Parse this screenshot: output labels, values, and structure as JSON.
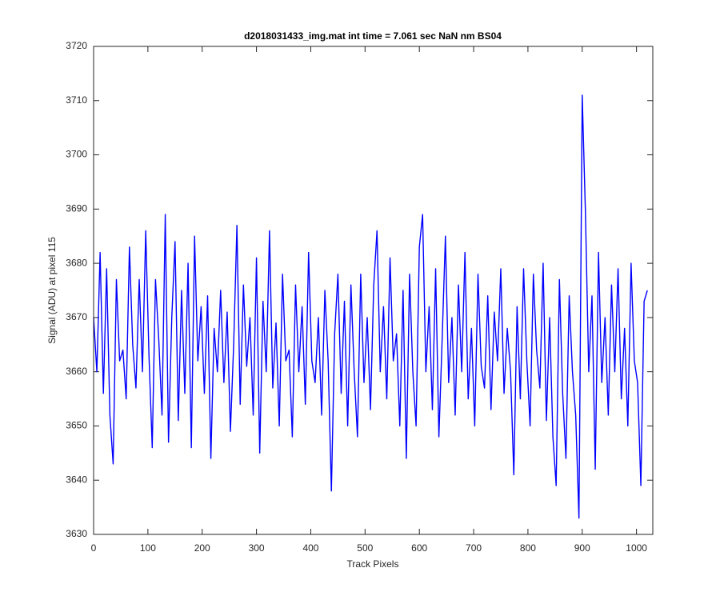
{
  "chart_data": {
    "type": "line",
    "title": "d2018031433_img.mat int time = 7.061 sec  NaN nm BS04",
    "x_label": "Track Pixels",
    "y_label": "Signal (ADU) at pixel 115",
    "xlim": [
      0,
      1030
    ],
    "ylim": [
      3630,
      3720
    ],
    "xticks": [
      0,
      100,
      200,
      300,
      400,
      500,
      600,
      700,
      800,
      900,
      1000
    ],
    "yticks": [
      3630,
      3640,
      3650,
      3660,
      3670,
      3680,
      3690,
      3700,
      3710,
      3720
    ],
    "grid": false,
    "x": [
      0,
      6,
      12,
      18,
      24,
      30,
      36,
      42,
      48,
      54,
      60,
      66,
      72,
      78,
      84,
      90,
      96,
      102,
      108,
      114,
      120,
      126,
      132,
      138,
      144,
      150,
      156,
      162,
      168,
      174,
      180,
      186,
      192,
      198,
      204,
      210,
      216,
      222,
      228,
      234,
      240,
      246,
      252,
      258,
      264,
      270,
      276,
      282,
      288,
      294,
      300,
      306,
      312,
      318,
      324,
      330,
      336,
      342,
      348,
      354,
      360,
      366,
      372,
      378,
      384,
      390,
      396,
      402,
      408,
      414,
      420,
      426,
      432,
      438,
      444,
      450,
      456,
      462,
      468,
      474,
      480,
      486,
      492,
      498,
      504,
      510,
      516,
      522,
      528,
      534,
      540,
      546,
      552,
      558,
      564,
      570,
      576,
      582,
      588,
      594,
      600,
      606,
      612,
      618,
      624,
      630,
      636,
      642,
      648,
      654,
      660,
      666,
      672,
      678,
      684,
      690,
      696,
      702,
      708,
      714,
      720,
      726,
      732,
      738,
      744,
      750,
      756,
      762,
      768,
      774,
      780,
      786,
      792,
      798,
      804,
      810,
      816,
      822,
      828,
      834,
      840,
      846,
      852,
      858,
      864,
      870,
      876,
      882,
      888,
      894,
      900,
      906,
      912,
      918,
      924,
      930,
      936,
      942,
      948,
      954,
      960,
      966,
      972,
      978,
      984,
      990,
      996,
      1002,
      1008,
      1014,
      1020
    ],
    "series": [
      {
        "name": "signal",
        "color": "#0000ff",
        "values": [
          3670,
          3660,
          3682,
          3656,
          3679,
          3652,
          3643,
          3677,
          3662,
          3664,
          3655,
          3683,
          3665,
          3657,
          3677,
          3660,
          3686,
          3663,
          3646,
          3677,
          3666,
          3652,
          3689,
          3647,
          3670,
          3684,
          3651,
          3675,
          3656,
          3680,
          3646,
          3685,
          3662,
          3672,
          3656,
          3674,
          3644,
          3668,
          3660,
          3675,
          3658,
          3671,
          3649,
          3665,
          3687,
          3654,
          3676,
          3661,
          3670,
          3652,
          3681,
          3645,
          3673,
          3660,
          3686,
          3657,
          3669,
          3650,
          3678,
          3662,
          3664,
          3648,
          3676,
          3660,
          3672,
          3654,
          3682,
          3662,
          3658,
          3670,
          3652,
          3675,
          3662,
          3638,
          3667,
          3678,
          3656,
          3673,
          3650,
          3676,
          3660,
          3648,
          3678,
          3658,
          3670,
          3653,
          3676,
          3686,
          3660,
          3672,
          3655,
          3681,
          3662,
          3667,
          3650,
          3675,
          3644,
          3678,
          3660,
          3650,
          3683,
          3689,
          3660,
          3672,
          3653,
          3679,
          3648,
          3666,
          3685,
          3658,
          3670,
          3652,
          3676,
          3660,
          3682,
          3655,
          3668,
          3650,
          3678,
          3661,
          3657,
          3674,
          3653,
          3671,
          3662,
          3679,
          3656,
          3668,
          3660,
          3641,
          3672,
          3655,
          3679,
          3662,
          3650,
          3678,
          3664,
          3657,
          3680,
          3651,
          3670,
          3648,
          3639,
          3677,
          3656,
          3644,
          3674,
          3660,
          3652,
          3633,
          3711,
          3689,
          3660,
          3674,
          3642,
          3682,
          3658,
          3670,
          3652,
          3676,
          3660,
          3679,
          3655,
          3668,
          3650,
          3680,
          3662,
          3658,
          3639,
          3673,
          3675
        ]
      }
    ]
  }
}
